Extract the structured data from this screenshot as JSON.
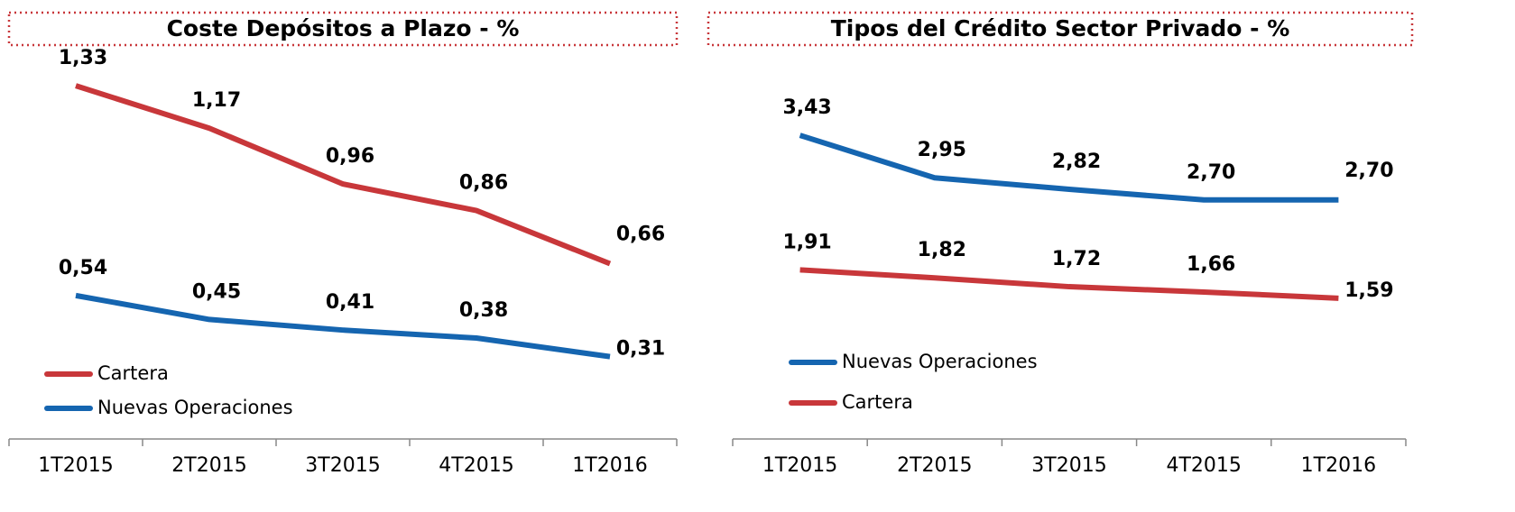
{
  "chart_data": [
    {
      "type": "line",
      "title": "Coste Depósitos a Plazo - %",
      "categories": [
        "1T2015",
        "2T2015",
        "3T2015",
        "4T2015",
        "1T2016"
      ],
      "ylim": [
        0,
        1.5
      ],
      "legend": "lower left",
      "series": [
        {
          "name": "Cartera",
          "color": "#c8373a",
          "values": [
            1.33,
            1.17,
            0.96,
            0.86,
            0.66
          ],
          "value_labels": [
            "1,33",
            "1,17",
            "0,96",
            "0,86",
            "0,66"
          ]
        },
        {
          "name": "Nuevas Operaciones",
          "color": "#1565b0",
          "values": [
            0.54,
            0.45,
            0.41,
            0.38,
            0.31
          ],
          "value_labels": [
            "0,54",
            "0,45",
            "0,41",
            "0,38",
            "0,31"
          ]
        }
      ]
    },
    {
      "type": "line",
      "title": "Tipos del Crédito Sector Privado - %",
      "categories": [
        "1T2015",
        "2T2015",
        "3T2015",
        "4T2015",
        "1T2016"
      ],
      "ylim": [
        0,
        4.5
      ],
      "legend": "lower left",
      "series": [
        {
          "name": "Nuevas Operaciones",
          "color": "#1565b0",
          "values": [
            3.43,
            2.95,
            2.82,
            2.7,
            2.7
          ],
          "value_labels": [
            "3,43",
            "2,95",
            "2,82",
            "2,70",
            "2,70"
          ]
        },
        {
          "name": "Cartera",
          "color": "#c8373a",
          "values": [
            1.91,
            1.82,
            1.72,
            1.66,
            1.59
          ],
          "value_labels": [
            "1,91",
            "1,82",
            "1,72",
            "1,66",
            "1,59"
          ]
        }
      ]
    }
  ]
}
